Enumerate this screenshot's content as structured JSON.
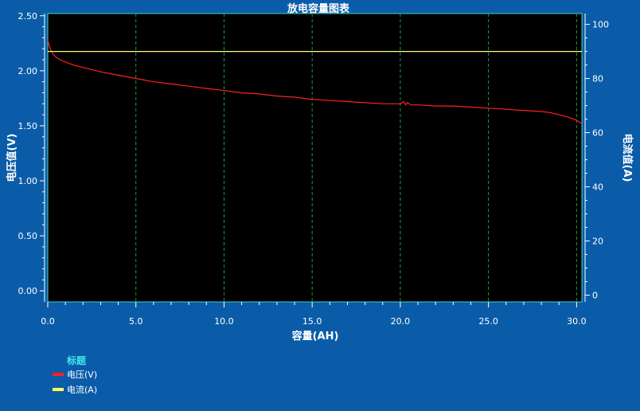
{
  "chart_data": {
    "type": "line",
    "title": "放电容量图表",
    "xlabel": "容量(AH)",
    "ylabel_left": "电压值(V)",
    "ylabel_right": "电流值(A)",
    "xlim": [
      0,
      30.3
    ],
    "ylim_left": [
      -0.1,
      2.52
    ],
    "ylim_right": [
      -2.5,
      104
    ],
    "x_ticks": [
      "0.0",
      "5.0",
      "10.0",
      "15.0",
      "20.0",
      "25.0",
      "30.0"
    ],
    "y_left_ticks": [
      "0.00",
      "0.50",
      "1.00",
      "1.50",
      "2.00",
      "2.50"
    ],
    "y_right_ticks": [
      "0",
      "20",
      "40",
      "60",
      "80",
      "100"
    ],
    "grid": "vertical-dashed",
    "legend_title": "标题",
    "series": [
      {
        "name": "电压(V)",
        "axis": "left",
        "color": "#ff2020",
        "x": [
          0,
          0.1,
          0.2,
          0.3,
          0.5,
          0.7,
          1,
          1.5,
          2,
          3,
          4,
          5,
          6,
          7,
          8,
          9,
          10,
          11,
          12,
          13,
          14,
          15,
          16,
          17,
          18,
          19,
          20,
          20.2,
          20.3,
          20.4,
          20.6,
          21,
          22,
          23,
          24,
          25,
          26,
          27,
          28,
          28.5,
          29,
          29.5,
          30,
          30.3
        ],
        "values": [
          2.28,
          2.22,
          2.18,
          2.15,
          2.12,
          2.1,
          2.08,
          2.05,
          2.03,
          1.99,
          1.96,
          1.93,
          1.9,
          1.88,
          1.86,
          1.84,
          1.82,
          1.8,
          1.79,
          1.77,
          1.76,
          1.74,
          1.73,
          1.72,
          1.71,
          1.7,
          1.7,
          1.72,
          1.69,
          1.71,
          1.69,
          1.69,
          1.68,
          1.68,
          1.67,
          1.66,
          1.65,
          1.64,
          1.63,
          1.62,
          1.6,
          1.58,
          1.55,
          1.52
        ]
      },
      {
        "name": "电流(A)",
        "axis": "right",
        "color": "#ffff60",
        "x": [
          0,
          30.3
        ],
        "values": [
          90,
          90
        ]
      }
    ]
  }
}
